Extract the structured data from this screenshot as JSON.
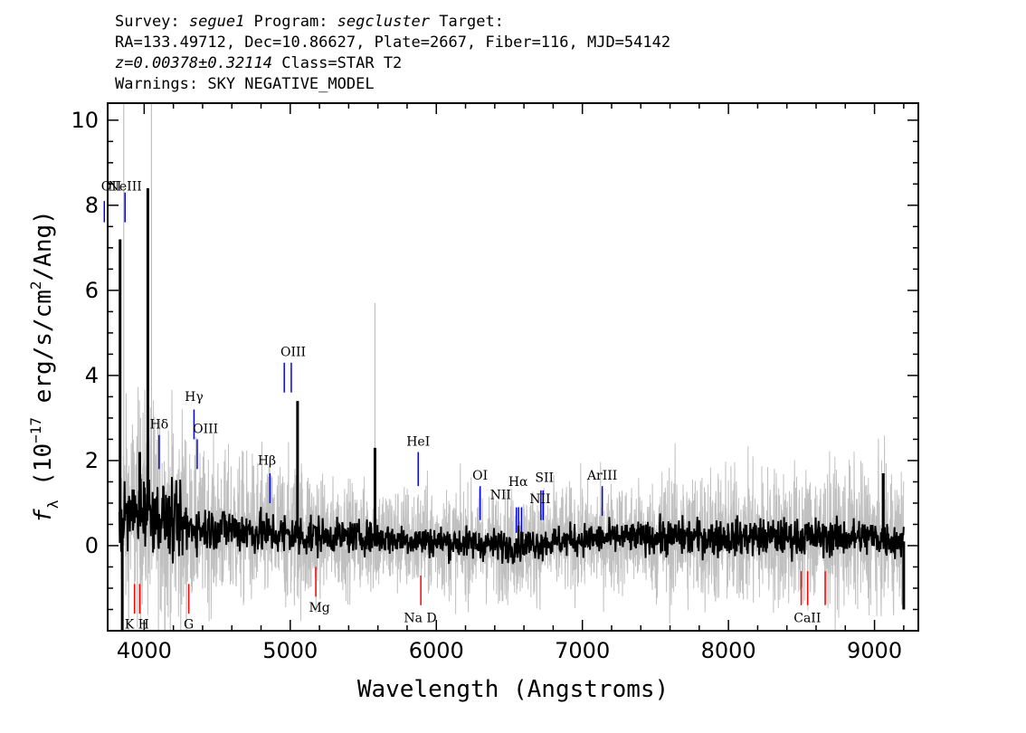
{
  "header": {
    "line1": {
      "survey_label": "Survey: ",
      "survey": "segue1",
      "program_label": " Program: ",
      "program": "segcluster",
      "target_label": " Target:"
    },
    "line2": "RA=133.49712, Dec=10.86627, Plate=2667, Fiber=116, MJD=54142",
    "line3": {
      "z": "z=0.00378±0.32114",
      "rest": " Class=STAR T2"
    },
    "line4": "Warnings: SKY NEGATIVE_MODEL"
  },
  "colors": {
    "spectrum": "#000000",
    "noise": "#c0c0c0",
    "emission": "#0000ff",
    "absorption": "#ff0000",
    "axes": "#000000"
  },
  "chart_data": {
    "type": "line",
    "xlabel": "Wavelength (Angstroms)",
    "ylabel": "f_λ (10^-17 erg/s/cm^2/Ang)",
    "ylabel_parts": {
      "f": "f",
      "lambda": "λ",
      "unit_a": " (10",
      "exp1": "−17",
      "unit_b": " erg/s/cm",
      "exp2": "2",
      "unit_c": "/Ang)"
    },
    "xlim": [
      3750,
      9300
    ],
    "ylim": [
      -2,
      10.4
    ],
    "x_ticks": [
      4000,
      5000,
      6000,
      7000,
      8000,
      9000
    ],
    "x_tick_labels": [
      "4000",
      "5000",
      "6000",
      "7000",
      "8000",
      "9000"
    ],
    "y_ticks": [
      0,
      2,
      4,
      6,
      8,
      10
    ],
    "y_tick_labels": [
      "0",
      "2",
      "4",
      "6",
      "8",
      "10"
    ],
    "series": [
      {
        "role": "flux",
        "x_range": [
          3830,
          9200
        ],
        "anchors": [
          [
            3830,
            0.6
          ],
          [
            3900,
            0.7
          ],
          [
            4000,
            0.9
          ],
          [
            4100,
            0.7
          ],
          [
            4200,
            0.5
          ],
          [
            4400,
            0.4
          ],
          [
            4600,
            0.4
          ],
          [
            4800,
            0.3
          ],
          [
            5000,
            0.25
          ],
          [
            5500,
            0.2
          ],
          [
            6000,
            0.1
          ],
          [
            6500,
            0.0
          ],
          [
            7000,
            0.15
          ],
          [
            7500,
            0.2
          ],
          [
            8000,
            0.2
          ],
          [
            8500,
            0.2
          ],
          [
            9000,
            0.2
          ],
          [
            9200,
            0.1
          ]
        ],
        "spikes": [
          [
            3835,
            7.2
          ],
          [
            3850,
            -2.0
          ],
          [
            4025,
            8.4
          ],
          [
            5050,
            3.4
          ],
          [
            5580,
            2.3
          ],
          [
            3970,
            2.2
          ],
          [
            9060,
            1.7
          ],
          [
            9200,
            -1.5
          ]
        ]
      },
      {
        "role": "noise",
        "x_range": [
          3830,
          9200
        ],
        "spikes": [
          [
            4050,
            10.4
          ],
          [
            3860,
            10.4
          ],
          [
            5580,
            5.7
          ],
          [
            3975,
            3.0
          ]
        ]
      }
    ],
    "emission_lines": [
      {
        "label": "OII",
        "x": 3727,
        "y": [
          7.6,
          8.1
        ]
      },
      {
        "label": "NeIII",
        "x": 3869,
        "y": [
          7.6,
          8.3
        ]
      },
      {
        "label": "Hδ",
        "x": 4102,
        "y": [
          1.8,
          2.6
        ]
      },
      {
        "label": "Hγ",
        "x": 4341,
        "y": [
          2.5,
          3.2
        ]
      },
      {
        "label": "OIII",
        "x": 4363,
        "y": [
          1.8,
          2.5
        ]
      },
      {
        "label": "Hβ",
        "x": 4861,
        "y": [
          1.0,
          1.7
        ]
      },
      {
        "label": "OIII",
        "x": 4959,
        "y": [
          3.6,
          4.3
        ]
      },
      {
        "label": "OIII",
        "x": 5007,
        "y": [
          3.6,
          4.3
        ]
      },
      {
        "label": "HeI",
        "x": 5876,
        "y": [
          1.4,
          2.2
        ]
      },
      {
        "label": "OI",
        "x": 6300,
        "y": [
          0.6,
          1.4
        ]
      },
      {
        "label": "NII",
        "x": 6548,
        "y": [
          0.3,
          0.9
        ]
      },
      {
        "label": "Hα",
        "x": 6563,
        "y": [
          0.3,
          0.9
        ]
      },
      {
        "label": "NII",
        "x": 6583,
        "y": [
          0.3,
          0.9
        ]
      },
      {
        "label": "SII",
        "x": 6716,
        "y": [
          0.6,
          1.3
        ]
      },
      {
        "label": "SII",
        "x": 6731,
        "y": [
          0.6,
          1.3
        ]
      },
      {
        "label": "ArIII",
        "x": 7136,
        "y": [
          0.7,
          1.4
        ]
      }
    ],
    "absorption_lines": [
      {
        "label": "K",
        "x": 3934,
        "y": [
          -1.6,
          -0.9
        ]
      },
      {
        "label": "H",
        "x": 3969,
        "y": [
          -1.6,
          -0.9
        ]
      },
      {
        "label": "G",
        "x": 4305,
        "y": [
          -1.6,
          -0.9
        ]
      },
      {
        "label": "Mg",
        "x": 5175,
        "y": [
          -1.2,
          -0.5
        ]
      },
      {
        "label": "Na D",
        "x": 5894,
        "y": [
          -1.4,
          -0.7
        ]
      },
      {
        "label": "CaII",
        "x": 8498,
        "y": [
          -1.4,
          -0.6
        ]
      },
      {
        "label": "CaII",
        "x": 8542,
        "y": [
          -1.4,
          -0.6
        ]
      },
      {
        "label": "CaII",
        "x": 8662,
        "y": [
          -1.4,
          -0.6
        ]
      }
    ],
    "emission_labels": [
      {
        "text": "OII",
        "x": 3727,
        "y": 8.35
      },
      {
        "text": "NeIII",
        "x": 3869,
        "y": 8.35
      },
      {
        "text": "Hδ",
        "x": 4102,
        "y": 2.75
      },
      {
        "text": "Hγ",
        "x": 4341,
        "y": 3.4
      },
      {
        "text": "OIII",
        "x": 4420,
        "y": 2.65
      },
      {
        "text": "Hβ",
        "x": 4840,
        "y": 1.9
      },
      {
        "text": "OIII",
        "x": 5020,
        "y": 4.45
      },
      {
        "text": "HeI",
        "x": 5876,
        "y": 2.35
      },
      {
        "text": "OI",
        "x": 6300,
        "y": 1.55
      },
      {
        "text": "NII",
        "x": 6440,
        "y": 1.1
      },
      {
        "text": "Hα",
        "x": 6560,
        "y": 1.4
      },
      {
        "text": "SII",
        "x": 6740,
        "y": 1.5
      },
      {
        "text": "NII",
        "x": 6710,
        "y": 1.0
      },
      {
        "text": "ArIII",
        "x": 7136,
        "y": 1.55
      }
    ],
    "absorption_labels": [
      {
        "text": "K H",
        "x": 3950,
        "y": -1.95
      },
      {
        "text": "G",
        "x": 4305,
        "y": -1.95
      },
      {
        "text": "Mg",
        "x": 5200,
        "y": -1.55
      },
      {
        "text": "Na  D",
        "x": 5890,
        "y": -1.8
      },
      {
        "text": "CaII",
        "x": 8540,
        "y": -1.8
      }
    ]
  }
}
